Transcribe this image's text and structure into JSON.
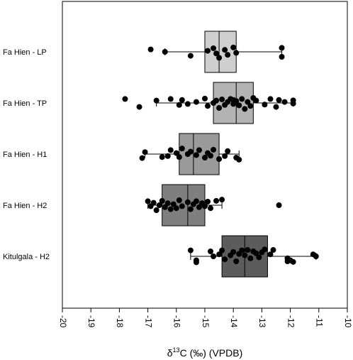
{
  "chart_data": {
    "type": "box",
    "xlabel_prefix": "δ",
    "xlabel_sup": "13",
    "xlabel_rest": "C (‰) (VPDB)",
    "xlim": [
      -20,
      -10
    ],
    "xticks": [
      -20,
      -19,
      -18,
      -17,
      -16,
      -15,
      -14,
      -13,
      -12,
      -11,
      -10
    ],
    "tick_labels": [
      "-20",
      "-19",
      "-18",
      "-17",
      "-16",
      "-15",
      "-14",
      "-13",
      "-12",
      "-11",
      "-10"
    ],
    "box_colors": [
      "#cfcfcf",
      "#b3b3b3",
      "#9a9a9a",
      "#7f7f7f",
      "#5c5c5c"
    ],
    "groups": [
      {
        "label": "Fa Hien - LP",
        "whisker_low": -16.4,
        "q1": -15.0,
        "median": -14.5,
        "q3": -13.9,
        "whisker_high": -12.3,
        "points": [
          {
            "x": -16.9,
            "y": 0.12
          },
          {
            "x": -16.4,
            "y": 0.0
          },
          {
            "x": -15.5,
            "y": -0.2
          },
          {
            "x": -14.9,
            "y": 0.05
          },
          {
            "x": -14.7,
            "y": 0.18
          },
          {
            "x": -14.6,
            "y": -0.08
          },
          {
            "x": -14.5,
            "y": -0.3
          },
          {
            "x": -14.3,
            "y": 0.1
          },
          {
            "x": -14.2,
            "y": -0.15
          },
          {
            "x": -14.0,
            "y": 0.22
          },
          {
            "x": -13.9,
            "y": -0.05
          },
          {
            "x": -12.3,
            "y": -0.25
          },
          {
            "x": -12.3,
            "y": 0.2
          }
        ]
      },
      {
        "label": "Fa Hien  - TP",
        "whisker_low": -16.7,
        "q1": -14.7,
        "median": -13.9,
        "q3": -13.3,
        "whisker_high": -11.9,
        "points": [
          {
            "x": -17.8,
            "y": 0.2
          },
          {
            "x": -17.3,
            "y": -0.2
          },
          {
            "x": -16.7,
            "y": 0.12
          },
          {
            "x": -16.2,
            "y": 0.2
          },
          {
            "x": -15.9,
            "y": -0.1
          },
          {
            "x": -15.8,
            "y": 0.15
          },
          {
            "x": -15.6,
            "y": -0.05
          },
          {
            "x": -15.3,
            "y": 0.05
          },
          {
            "x": -15.0,
            "y": 0.22
          },
          {
            "x": -14.9,
            "y": -0.15
          },
          {
            "x": -14.7,
            "y": 0.0
          },
          {
            "x": -14.6,
            "y": 0.12
          },
          {
            "x": -14.5,
            "y": -0.25
          },
          {
            "x": -14.4,
            "y": 0.18
          },
          {
            "x": -14.3,
            "y": -0.1
          },
          {
            "x": -14.2,
            "y": 0.05
          },
          {
            "x": -14.1,
            "y": 0.2
          },
          {
            "x": -14.0,
            "y": 0.15
          },
          {
            "x": -14.0,
            "y": -0.05
          },
          {
            "x": -13.9,
            "y": 0.1
          },
          {
            "x": -13.8,
            "y": -0.12
          },
          {
            "x": -13.7,
            "y": 0.2
          },
          {
            "x": -13.6,
            "y": -0.3
          },
          {
            "x": -13.5,
            "y": 0.05
          },
          {
            "x": -13.4,
            "y": -0.15
          },
          {
            "x": -13.3,
            "y": 0.25
          },
          {
            "x": -13.2,
            "y": 0.12
          },
          {
            "x": -12.9,
            "y": -0.08
          },
          {
            "x": -12.7,
            "y": 0.2
          },
          {
            "x": -12.5,
            "y": -0.2
          },
          {
            "x": -12.4,
            "y": 0.15
          },
          {
            "x": -12.2,
            "y": 0.05
          },
          {
            "x": -11.9,
            "y": -0.03
          },
          {
            "x": -11.9,
            "y": 0.13
          }
        ]
      },
      {
        "label": "Fa Hien  - H1",
        "whisker_low": -17.1,
        "q1": -15.9,
        "median": -15.4,
        "q3": -14.5,
        "whisker_high": -13.8,
        "points": [
          {
            "x": -17.2,
            "y": -0.2
          },
          {
            "x": -17.1,
            "y": 0.1
          },
          {
            "x": -16.5,
            "y": -0.15
          },
          {
            "x": -16.3,
            "y": -0.1
          },
          {
            "x": -16.2,
            "y": 0.2
          },
          {
            "x": -16.0,
            "y": 0.05
          },
          {
            "x": -15.9,
            "y": -0.15
          },
          {
            "x": -15.8,
            "y": 0.28
          },
          {
            "x": -15.6,
            "y": 0.0
          },
          {
            "x": -15.5,
            "y": 0.12
          },
          {
            "x": -15.3,
            "y": -0.05
          },
          {
            "x": -15.2,
            "y": 0.2
          },
          {
            "x": -15.0,
            "y": -0.18
          },
          {
            "x": -14.9,
            "y": 0.05
          },
          {
            "x": -14.8,
            "y": -0.08
          },
          {
            "x": -14.7,
            "y": 0.22
          },
          {
            "x": -14.5,
            "y": -0.25
          },
          {
            "x": -14.3,
            "y": -0.1
          },
          {
            "x": -14.2,
            "y": 0.15
          },
          {
            "x": -13.9,
            "y": -0.18
          },
          {
            "x": -13.8,
            "y": -0.28
          }
        ]
      },
      {
        "label": "Fa Hien  - H2",
        "whisker_low": -17.0,
        "q1": -16.5,
        "median": -15.6,
        "q3": -15.0,
        "whisker_high": -14.4,
        "points": [
          {
            "x": -17.0,
            "y": 0.2
          },
          {
            "x": -16.9,
            "y": -0.05
          },
          {
            "x": -16.8,
            "y": 0.12
          },
          {
            "x": -16.7,
            "y": -0.25
          },
          {
            "x": -16.6,
            "y": 0.0
          },
          {
            "x": -16.5,
            "y": 0.22
          },
          {
            "x": -16.4,
            "y": -0.1
          },
          {
            "x": -16.3,
            "y": 0.1
          },
          {
            "x": -16.2,
            "y": -0.2
          },
          {
            "x": -16.1,
            "y": 0.05
          },
          {
            "x": -16.0,
            "y": -0.15
          },
          {
            "x": -15.9,
            "y": 0.25
          },
          {
            "x": -15.8,
            "y": -0.05
          },
          {
            "x": -15.6,
            "y": 0.15
          },
          {
            "x": -15.5,
            "y": -0.2
          },
          {
            "x": -15.4,
            "y": 0.05
          },
          {
            "x": -15.3,
            "y": 0.2
          },
          {
            "x": -15.2,
            "y": -0.1
          },
          {
            "x": -15.1,
            "y": 0.1
          },
          {
            "x": -15.0,
            "y": -0.05
          },
          {
            "x": -14.9,
            "y": 0.18
          },
          {
            "x": -14.8,
            "y": -0.15
          },
          {
            "x": -14.6,
            "y": 0.22
          },
          {
            "x": -14.4,
            "y": 0.28
          },
          {
            "x": -12.4,
            "y": 0.0
          }
        ]
      },
      {
        "label": "Kitulgala - H2",
        "whisker_low": -15.5,
        "q1": -14.4,
        "median": -13.6,
        "q3": -12.8,
        "whisker_high": -11.1,
        "points": [
          {
            "x": -15.5,
            "y": 0.3
          },
          {
            "x": -15.3,
            "y": -0.2
          },
          {
            "x": -15.3,
            "y": -0.3
          },
          {
            "x": -14.8,
            "y": 0.25
          },
          {
            "x": -14.7,
            "y": 0.0
          },
          {
            "x": -14.5,
            "y": 0.1
          },
          {
            "x": -14.4,
            "y": 0.3
          },
          {
            "x": -14.3,
            "y": -0.15
          },
          {
            "x": -14.1,
            "y": 0.05
          },
          {
            "x": -14.0,
            "y": 0.22
          },
          {
            "x": -13.9,
            "y": -0.25
          },
          {
            "x": -13.8,
            "y": 0.12
          },
          {
            "x": -13.7,
            "y": 0.3
          },
          {
            "x": -13.6,
            "y": 0.05
          },
          {
            "x": -13.5,
            "y": 0.32
          },
          {
            "x": -13.4,
            "y": -0.1
          },
          {
            "x": -13.3,
            "y": 0.25
          },
          {
            "x": -13.2,
            "y": 0.15
          },
          {
            "x": -13.1,
            "y": -0.05
          },
          {
            "x": -13.0,
            "y": 0.2
          },
          {
            "x": -12.9,
            "y": 0.35
          },
          {
            "x": -12.7,
            "y": 0.1
          },
          {
            "x": -12.6,
            "y": 0.32
          },
          {
            "x": -12.1,
            "y": -0.1
          },
          {
            "x": -12.1,
            "y": -0.25
          },
          {
            "x": -12.0,
            "y": -0.2
          },
          {
            "x": -11.9,
            "y": -0.28
          },
          {
            "x": -11.2,
            "y": 0.1
          },
          {
            "x": -11.1,
            "y": 0.0
          }
        ]
      }
    ]
  }
}
